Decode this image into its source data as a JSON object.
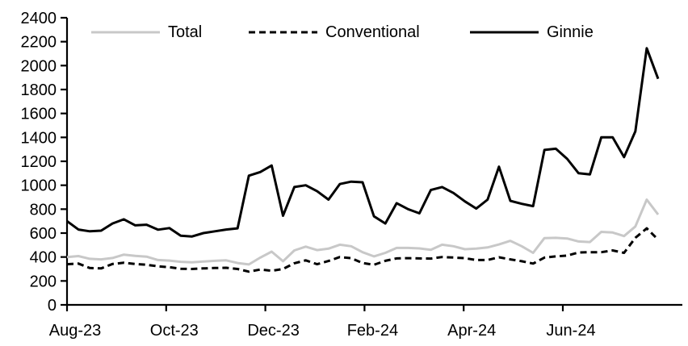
{
  "chart_data": {
    "type": "line",
    "title": "",
    "xlabel": "",
    "ylabel": "",
    "ylim": [
      0,
      2400
    ],
    "ytick_step": 200,
    "grid": false,
    "legend_position": "top",
    "x_tick_labels": [
      "Aug-23",
      "Oct-23",
      "Dec-23",
      "Feb-24",
      "Apr-24",
      "Jun-24"
    ],
    "x_range_note": "weekly data from Aug-23 to Aug-24",
    "series": [
      {
        "name": "Total",
        "color": "#c8c8c8",
        "dash": "solid",
        "values": [
          400,
          408,
          385,
          380,
          392,
          420,
          410,
          403,
          375,
          370,
          360,
          355,
          362,
          368,
          372,
          350,
          338,
          395,
          445,
          365,
          455,
          487,
          458,
          470,
          503,
          490,
          440,
          405,
          435,
          476,
          476,
          472,
          460,
          503,
          490,
          465,
          470,
          480,
          505,
          535,
          490,
          435,
          558,
          560,
          555,
          530,
          525,
          610,
          605,
          575,
          655,
          880,
          755
        ]
      },
      {
        "name": "Conventional",
        "color": "#000000",
        "dash": "dashed",
        "values": [
          340,
          345,
          308,
          305,
          342,
          352,
          342,
          335,
          322,
          315,
          302,
          300,
          305,
          308,
          310,
          300,
          278,
          295,
          285,
          300,
          348,
          372,
          340,
          367,
          400,
          390,
          350,
          335,
          368,
          388,
          390,
          388,
          387,
          400,
          396,
          390,
          375,
          375,
          398,
          380,
          365,
          345,
          395,
          405,
          412,
          438,
          440,
          440,
          455,
          435,
          560,
          640,
          545
        ]
      },
      {
        "name": "Ginnie",
        "color": "#000000",
        "dash": "solid",
        "values": [
          700,
          630,
          615,
          620,
          680,
          715,
          665,
          670,
          628,
          642,
          578,
          572,
          600,
          615,
          630,
          640,
          1080,
          1110,
          1165,
          745,
          985,
          1000,
          950,
          880,
          1010,
          1030,
          1025,
          740,
          680,
          850,
          800,
          765,
          960,
          985,
          935,
          865,
          805,
          880,
          1155,
          870,
          845,
          825,
          1295,
          1305,
          1220,
          1100,
          1090,
          1400,
          1400,
          1235,
          1450,
          2145,
          1890
        ]
      }
    ]
  },
  "axis": {
    "y_tick_labels": [
      "0",
      "200",
      "400",
      "600",
      "800",
      "1000",
      "1200",
      "1400",
      "1600",
      "1800",
      "2000",
      "2200",
      "2400"
    ]
  }
}
